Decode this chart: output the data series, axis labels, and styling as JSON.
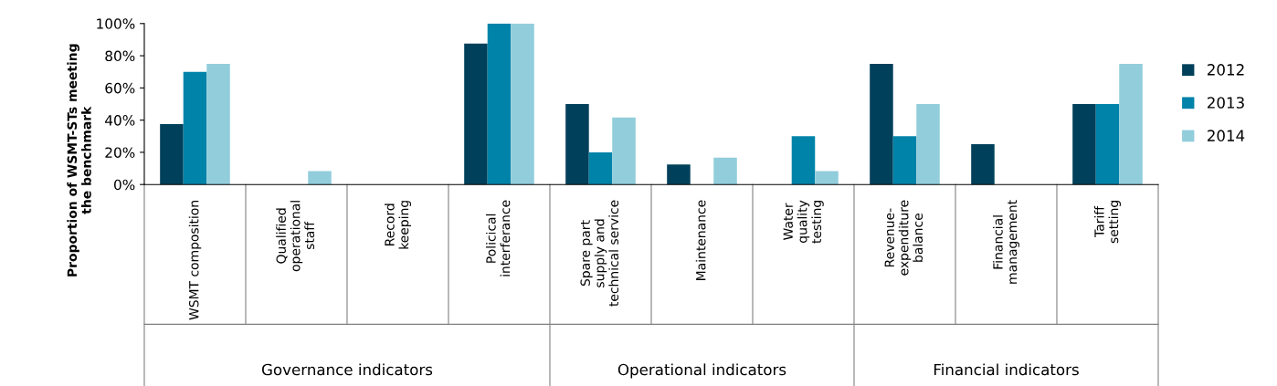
{
  "chart_data": {
    "type": "bar",
    "ylabel": "Proportion of WSMT-STs meeting\nthe benchmark",
    "categories": [
      "WSMT composition",
      "Qualified\noperational\nstaff",
      "Record\nkeeping",
      "Policical\ninterferance",
      "Spare part\nsupply and\ntechnical service",
      "Maintenance",
      "Water\nquality\ntesting",
      "Revenue-\nexpenditure\nbalance",
      "Financial\nmanagement",
      "Tariff\nsetting"
    ],
    "series": [
      {
        "name": "2012",
        "color": "#00405a",
        "values": [
          37.5,
          0,
          0,
          87.5,
          50,
          12.5,
          0,
          75,
          25,
          50
        ]
      },
      {
        "name": "2013",
        "color": "#0083a9",
        "values": [
          70,
          0,
          0,
          100,
          20,
          0,
          30,
          30,
          0,
          50
        ]
      },
      {
        "name": "2014",
        "color": "#92cddc",
        "values": [
          75,
          8.3,
          0,
          100,
          41.7,
          16.7,
          8.3,
          50,
          0,
          75
        ]
      }
    ],
    "ylim": [
      0,
      100
    ],
    "yticks": [
      {
        "value": 0,
        "label": "0%"
      },
      {
        "value": 20,
        "label": "20%"
      },
      {
        "value": 40,
        "label": "40%"
      },
      {
        "value": 60,
        "label": "60%"
      },
      {
        "value": 80,
        "label": "80%"
      },
      {
        "value": 100,
        "label": "100%"
      }
    ],
    "annotations": [
      "Governance indicators",
      "Operational indicators",
      "Financial indicators"
    ],
    "legend": "right",
    "grid": false
  }
}
